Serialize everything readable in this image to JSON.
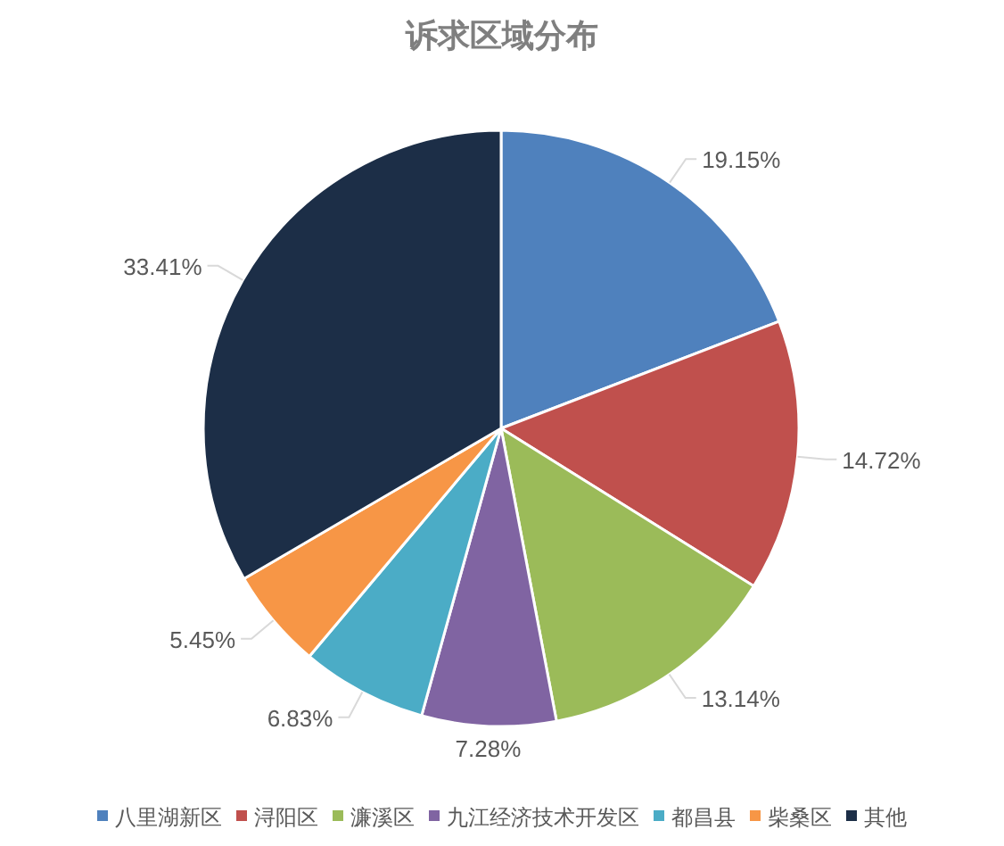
{
  "chart_data": {
    "type": "pie",
    "title": "诉求区域分布",
    "categories": [
      "八里湖新区",
      "浔阳区",
      "濂溪区",
      "九江经济技术开发区",
      "都昌县",
      "柴桑区",
      "其他"
    ],
    "values": [
      19.15,
      14.72,
      13.14,
      7.28,
      6.83,
      5.45,
      33.41
    ],
    "colors": [
      "#4f81bd",
      "#c0504d",
      "#9bbb59",
      "#8064a2",
      "#4bacc6",
      "#f79646",
      "#1c2e47"
    ],
    "value_labels": [
      "19.15%",
      "14.72%",
      "13.14%",
      "7.28%",
      "6.83%",
      "5.45%",
      "33.41%"
    ],
    "legend": "bottom"
  }
}
